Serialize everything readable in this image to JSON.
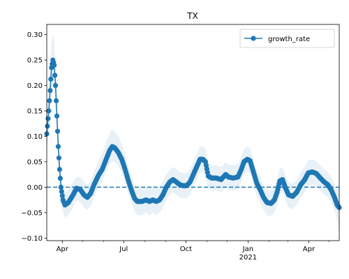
{
  "chart_data": {
    "type": "line",
    "title": "TX",
    "xlabel": "",
    "ylabel": "",
    "x_axis": {
      "kind": "date",
      "range": [
        "2020-03-09",
        "2021-05-16"
      ],
      "ticks": [
        {
          "date": "2020-04-01",
          "label": "Apr",
          "sublabel": ""
        },
        {
          "date": "2020-07-01",
          "label": "Jul",
          "sublabel": ""
        },
        {
          "date": "2020-10-01",
          "label": "Oct",
          "sublabel": ""
        },
        {
          "date": "2021-01-01",
          "label": "Jan",
          "sublabel": "2021"
        },
        {
          "date": "2021-04-01",
          "label": "Apr",
          "sublabel": ""
        }
      ],
      "minor_tick_dates": [
        "2020-05-01",
        "2020-06-01",
        "2020-08-01",
        "2020-09-01",
        "2020-11-01",
        "2020-12-01",
        "2021-02-01",
        "2021-03-01",
        "2021-05-01"
      ]
    },
    "y_axis": {
      "range": [
        -0.105,
        0.32
      ],
      "ticks": [
        -0.1,
        -0.05,
        0.0,
        0.05,
        0.1,
        0.15,
        0.2,
        0.25,
        0.3
      ],
      "tick_labels": [
        "−0.10",
        "−0.05",
        "0.00",
        "0.05",
        "0.10",
        "0.15",
        "0.20",
        "0.25",
        "0.30"
      ]
    },
    "reference_line": {
      "y": 0.0,
      "style": "dashed",
      "color": "#1f77b4"
    },
    "legend": {
      "placement": "top-right",
      "entries": [
        "growth_rate"
      ]
    },
    "band_color": "#1f77b4",
    "band_opacity": 0.1,
    "series": [
      {
        "name": "growth_rate",
        "color": "#1f77b4",
        "marker": "circle",
        "keypoints": [
          [
            "2020-03-09",
            0.105,
            0.07,
            0.14
          ],
          [
            "2020-03-12",
            0.15,
            0.11,
            0.19
          ],
          [
            "2020-03-14",
            0.19,
            0.15,
            0.24
          ],
          [
            "2020-03-16",
            0.235,
            0.19,
            0.285
          ],
          [
            "2020-03-18",
            0.25,
            0.2,
            0.3
          ],
          [
            "2020-03-20",
            0.24,
            0.19,
            0.285
          ],
          [
            "2020-03-22",
            0.2,
            0.15,
            0.245
          ],
          [
            "2020-03-24",
            0.14,
            0.1,
            0.18
          ],
          [
            "2020-03-26",
            0.08,
            0.05,
            0.115
          ],
          [
            "2020-03-28",
            0.035,
            0.01,
            0.065
          ],
          [
            "2020-03-30",
            0.0,
            -0.025,
            0.03
          ],
          [
            "2020-04-02",
            -0.025,
            -0.05,
            0.0
          ],
          [
            "2020-04-05",
            -0.035,
            -0.06,
            -0.01
          ],
          [
            "2020-04-10",
            -0.03,
            -0.055,
            -0.005
          ],
          [
            "2020-04-17",
            -0.015,
            -0.04,
            0.01
          ],
          [
            "2020-04-22",
            -0.002,
            -0.025,
            0.02
          ],
          [
            "2020-04-28",
            -0.005,
            -0.03,
            0.02
          ],
          [
            "2020-05-03",
            -0.015,
            -0.04,
            0.01
          ],
          [
            "2020-05-08",
            -0.02,
            -0.045,
            0.005
          ],
          [
            "2020-05-13",
            -0.012,
            -0.037,
            0.013
          ],
          [
            "2020-05-18",
            0.005,
            -0.02,
            0.03
          ],
          [
            "2020-05-24",
            0.022,
            -0.003,
            0.05
          ],
          [
            "2020-05-30",
            0.035,
            0.01,
            0.065
          ],
          [
            "2020-06-05",
            0.055,
            0.03,
            0.09
          ],
          [
            "2020-06-10",
            0.072,
            0.045,
            0.105
          ],
          [
            "2020-06-14",
            0.08,
            0.05,
            0.115
          ],
          [
            "2020-06-18",
            0.077,
            0.05,
            0.11
          ],
          [
            "2020-06-23",
            0.068,
            0.04,
            0.1
          ],
          [
            "2020-06-28",
            0.055,
            0.03,
            0.085
          ],
          [
            "2020-07-03",
            0.035,
            0.01,
            0.065
          ],
          [
            "2020-07-08",
            0.012,
            -0.013,
            0.04
          ],
          [
            "2020-07-13",
            -0.008,
            -0.033,
            0.018
          ],
          [
            "2020-07-17",
            -0.022,
            -0.047,
            0.003
          ],
          [
            "2020-07-21",
            -0.028,
            -0.055,
            -0.002
          ],
          [
            "2020-07-28",
            -0.028,
            -0.055,
            -0.002
          ],
          [
            "2020-08-03",
            -0.025,
            -0.05,
            0.0
          ],
          [
            "2020-08-08",
            -0.028,
            -0.055,
            -0.002
          ],
          [
            "2020-08-13",
            -0.025,
            -0.05,
            0.0
          ],
          [
            "2020-08-18",
            -0.028,
            -0.055,
            -0.002
          ],
          [
            "2020-08-23",
            -0.025,
            -0.05,
            0.0
          ],
          [
            "2020-08-28",
            -0.015,
            -0.04,
            0.012
          ],
          [
            "2020-09-02",
            0.0,
            -0.025,
            0.025
          ],
          [
            "2020-09-07",
            0.01,
            -0.015,
            0.035
          ],
          [
            "2020-09-12",
            0.015,
            -0.01,
            0.04
          ],
          [
            "2020-09-17",
            0.01,
            -0.015,
            0.035
          ],
          [
            "2020-09-22",
            0.005,
            -0.02,
            0.03
          ],
          [
            "2020-09-27",
            0.003,
            -0.022,
            0.028
          ],
          [
            "2020-10-02",
            0.003,
            -0.022,
            0.028
          ],
          [
            "2020-10-07",
            0.01,
            -0.015,
            0.035
          ],
          [
            "2020-10-12",
            0.025,
            0.0,
            0.05
          ],
          [
            "2020-10-17",
            0.04,
            0.015,
            0.065
          ],
          [
            "2020-10-22",
            0.055,
            0.03,
            0.08
          ],
          [
            "2020-10-26",
            0.055,
            0.03,
            0.08
          ],
          [
            "2020-10-30",
            0.05,
            0.025,
            0.075
          ],
          [
            "2020-11-03",
            0.022,
            -0.003,
            0.047
          ],
          [
            "2020-11-08",
            0.018,
            -0.007,
            0.043
          ],
          [
            "2020-11-15",
            0.018,
            -0.007,
            0.043
          ],
          [
            "2020-11-22",
            0.015,
            -0.01,
            0.04
          ],
          [
            "2020-11-29",
            0.025,
            0.0,
            0.05
          ],
          [
            "2020-12-03",
            0.02,
            -0.005,
            0.045
          ],
          [
            "2020-12-10",
            0.018,
            -0.007,
            0.043
          ],
          [
            "2020-12-17",
            0.02,
            -0.005,
            0.045
          ],
          [
            "2020-12-22",
            0.035,
            0.01,
            0.06
          ],
          [
            "2020-12-26",
            0.05,
            0.025,
            0.075
          ],
          [
            "2020-12-31",
            0.055,
            0.03,
            0.08
          ],
          [
            "2021-01-04",
            0.052,
            0.027,
            0.077
          ],
          [
            "2021-01-09",
            0.03,
            0.005,
            0.055
          ],
          [
            "2021-01-14",
            0.008,
            -0.017,
            0.033
          ],
          [
            "2021-01-19",
            -0.005,
            -0.03,
            0.02
          ],
          [
            "2021-01-24",
            -0.02,
            -0.045,
            0.005
          ],
          [
            "2021-01-29",
            -0.03,
            -0.055,
            -0.005
          ],
          [
            "2021-02-04",
            -0.032,
            -0.057,
            -0.007
          ],
          [
            "2021-02-09",
            -0.025,
            -0.05,
            0.0
          ],
          [
            "2021-02-13",
            -0.01,
            -0.035,
            0.015
          ],
          [
            "2021-02-17",
            0.012,
            -0.013,
            0.037
          ],
          [
            "2021-02-21",
            0.015,
            -0.01,
            0.04
          ],
          [
            "2021-02-25",
            0.0,
            -0.025,
            0.025
          ],
          [
            "2021-03-02",
            -0.015,
            -0.04,
            0.01
          ],
          [
            "2021-03-08",
            -0.018,
            -0.043,
            0.007
          ],
          [
            "2021-03-14",
            -0.01,
            -0.035,
            0.015
          ],
          [
            "2021-03-20",
            0.005,
            -0.02,
            0.03
          ],
          [
            "2021-03-26",
            0.015,
            -0.01,
            0.04
          ],
          [
            "2021-03-31",
            0.028,
            0.003,
            0.053
          ],
          [
            "2021-04-06",
            0.03,
            0.005,
            0.055
          ],
          [
            "2021-04-12",
            0.027,
            0.002,
            0.052
          ],
          [
            "2021-04-18",
            0.018,
            -0.007,
            0.043
          ],
          [
            "2021-04-24",
            0.01,
            -0.015,
            0.035
          ],
          [
            "2021-04-29",
            0.005,
            -0.02,
            0.03
          ],
          [
            "2021-05-04",
            -0.005,
            -0.03,
            0.02
          ],
          [
            "2021-05-09",
            -0.02,
            -0.045,
            0.005
          ],
          [
            "2021-05-13",
            -0.035,
            -0.065,
            -0.005
          ],
          [
            "2021-05-16",
            -0.04,
            -0.09,
            0.0
          ]
        ]
      }
    ]
  }
}
